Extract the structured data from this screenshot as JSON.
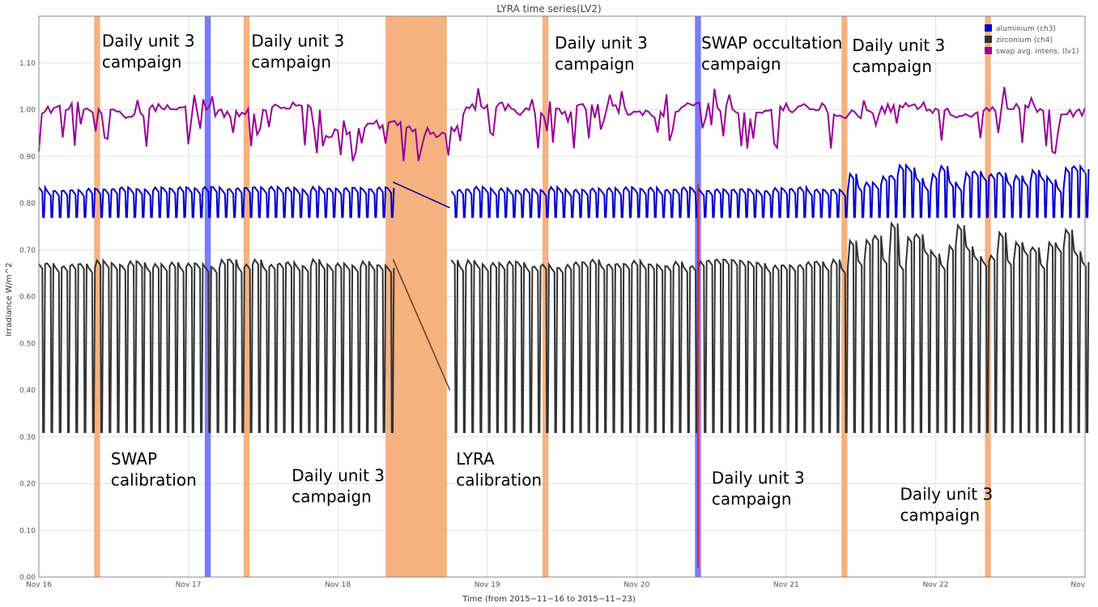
{
  "chart_data": {
    "type": "line",
    "title": "LYRA time series(LV2)",
    "xlabel": "Time (from 2015−11−16 to 2015−11−23)",
    "ylabel": "Irradiance W/m^2",
    "x_range_days": [
      16,
      23
    ],
    "ylim": [
      0,
      1.2
    ],
    "yticks": [
      "0.00",
      "0.10",
      "0.20",
      "0.30",
      "0.40",
      "0.50",
      "0.60",
      "0.70",
      "0.80",
      "0.90",
      "1.00",
      "1.10"
    ],
    "xticks": [
      {
        "day": 16,
        "label": "Nov 16"
      },
      {
        "day": 17,
        "label": "Nov 17"
      },
      {
        "day": 18,
        "label": "Nov 18"
      },
      {
        "day": 19,
        "label": "Nov 19"
      },
      {
        "day": 20,
        "label": "Nov 20"
      },
      {
        "day": 21,
        "label": "Nov 21"
      },
      {
        "day": 22,
        "label": "Nov 22"
      },
      {
        "day": 23,
        "label": "Nov"
      }
    ],
    "grid": true,
    "legend_position": "top-right",
    "series": [
      {
        "name": "aluminium (ch3)",
        "color": "#0000cc",
        "high": 0.83,
        "low": 0.77,
        "dips_per_day": 18
      },
      {
        "name": "zirconium (ch4)",
        "color": "#333333",
        "high": 0.67,
        "low": 0.31,
        "dips_per_day": 18
      },
      {
        "name": "swap avg. intens. (lv1)",
        "color": "#990099",
        "baseline": 1.0,
        "min": 0.89
      }
    ],
    "bands": [
      {
        "start": 16.37,
        "end": 16.41,
        "color": "#f5a56a",
        "alpha": 0.85
      },
      {
        "start": 17.11,
        "end": 17.15,
        "color": "#6b6bff",
        "alpha": 0.9
      },
      {
        "start": 17.37,
        "end": 17.41,
        "color": "#f5a56a",
        "alpha": 0.85
      },
      {
        "start": 18.32,
        "end": 18.73,
        "color": "#f5a56a",
        "alpha": 0.85
      },
      {
        "start": 19.37,
        "end": 19.41,
        "color": "#f5a56a",
        "alpha": 0.85
      },
      {
        "start": 20.39,
        "end": 20.43,
        "color": "#6b6bff",
        "alpha": 0.9
      },
      {
        "start": 21.37,
        "end": 21.41,
        "color": "#f5a56a",
        "alpha": 0.85
      },
      {
        "start": 22.33,
        "end": 22.37,
        "color": "#f5a56a",
        "alpha": 0.85
      }
    ],
    "annotations": [
      {
        "lines": [
          "Daily unit 3",
          "campaign"
        ],
        "day": 16.4,
        "y": 1.17
      },
      {
        "lines": [
          "Daily unit 3",
          "campaign"
        ],
        "day": 17.4,
        "y": 1.17
      },
      {
        "lines": [
          "Daily unit 3",
          "campaign"
        ],
        "day": 19.43,
        "y": 1.165
      },
      {
        "lines": [
          "SWAP occultation",
          "campaign"
        ],
        "day": 20.41,
        "y": 1.165
      },
      {
        "lines": [
          "Daily unit 3",
          "campaign"
        ],
        "day": 21.42,
        "y": 1.16
      },
      {
        "lines": [
          "SWAP",
          "calibration"
        ],
        "day": 16.46,
        "y": 0.275
      },
      {
        "lines": [
          "Daily unit 3",
          "campaign"
        ],
        "day": 17.67,
        "y": 0.24
      },
      {
        "lines": [
          "LYRA",
          "calibration"
        ],
        "day": 18.77,
        "y": 0.275
      },
      {
        "lines": [
          "Daily unit 3",
          "campaign"
        ],
        "day": 20.48,
        "y": 0.235
      },
      {
        "lines": [
          "Daily unit 3",
          "campaign"
        ],
        "day": 21.74,
        "y": 0.2
      }
    ]
  }
}
